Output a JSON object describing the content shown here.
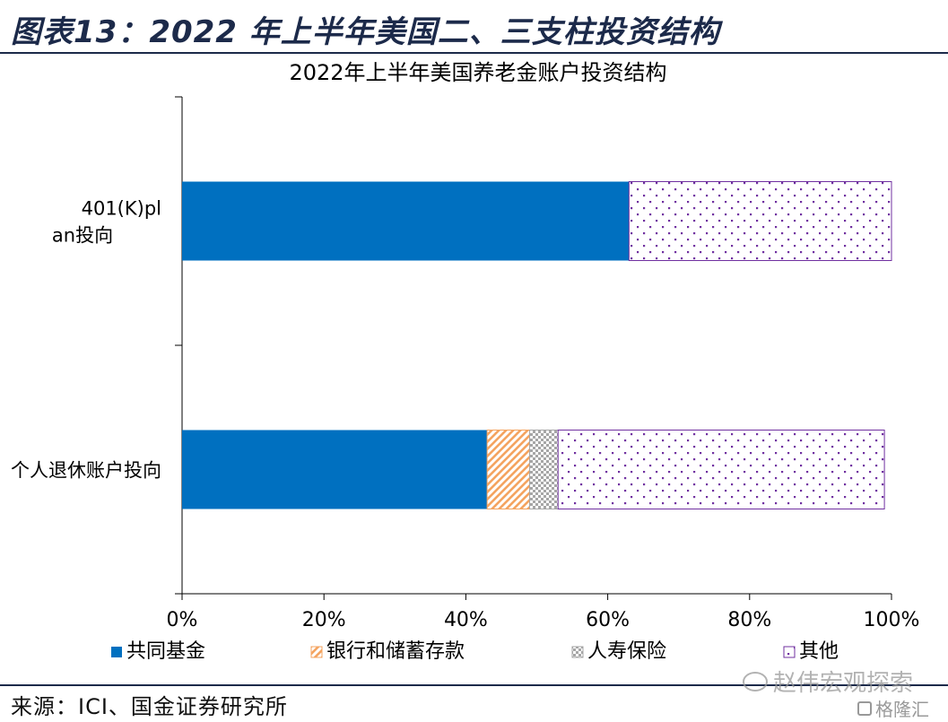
{
  "header": {
    "figure_title": "图表13：2022 年上半年美国二、三支柱投资结构"
  },
  "footer": {
    "source": "来源：ICI、国金证券研究所"
  },
  "watermark": {
    "text": "赵伟宏观探索",
    "icon": "wechat-icon",
    "brand_text": "格隆汇",
    "brand_icon": "gelonghui-logo-icon"
  },
  "colors": {
    "mutual_fund": "#0070c0",
    "bank": "#f4a460",
    "insurance": "#a6a6a6",
    "other": "#7030a0",
    "text": "#000000"
  },
  "chart_data": {
    "type": "bar",
    "orientation": "horizontal",
    "stacked": true,
    "title": "2022年上半年美国养老金账户投资结构",
    "categories": [
      "401(K)plan投向",
      "个人退休账户投向"
    ],
    "series": [
      {
        "name": "共同基金",
        "values": [
          63,
          43
        ],
        "color": "#0070c0",
        "pattern": "solid"
      },
      {
        "name": "银行和储蓄存款",
        "values": [
          0,
          6
        ],
        "color": "#f4a460",
        "pattern": "diagonal"
      },
      {
        "name": "人寿保险",
        "values": [
          0,
          4
        ],
        "color": "#a6a6a6",
        "pattern": "checker"
      },
      {
        "name": "其他",
        "values": [
          37,
          46
        ],
        "color": "#7030a0",
        "pattern": "dots"
      }
    ],
    "xlim": [
      0,
      100
    ],
    "x_ticks": [
      "0%",
      "20%",
      "40%",
      "60%",
      "80%",
      "100%"
    ],
    "grid": false,
    "legend_position": "bottom"
  }
}
